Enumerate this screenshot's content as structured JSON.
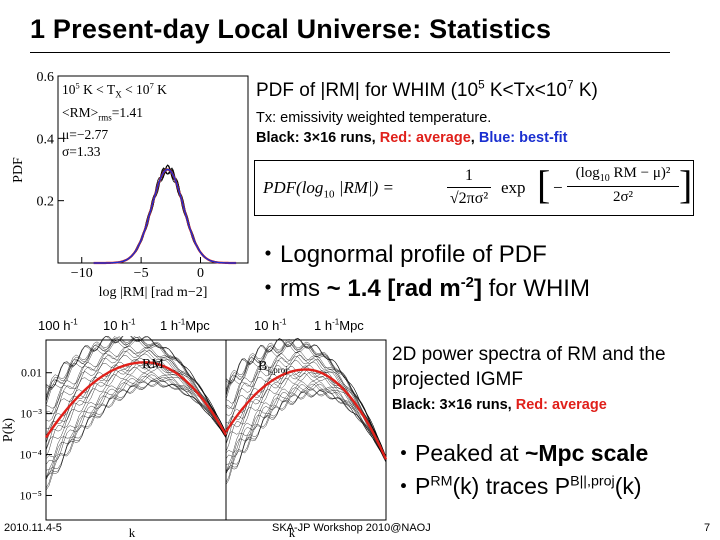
{
  "slide": {
    "title": "1 Present-day Local Universe: Statistics",
    "footer_left": "2010.11.4-5",
    "footer_center": "SKA-JP Workshop 2010@NAOJ",
    "page_number": "7"
  },
  "pdf_panel": {
    "heading_main": "PDF of |RM| for WHIM (10",
    "heading_exp1": "5",
    "heading_mid": " K<Tx<10",
    "heading_exp2": "7",
    "heading_end": " K)",
    "tx_note": "Tx: emissivity weighted temperature.",
    "legend_black": "Black: 3×16 runs, ",
    "legend_red": "Red: average",
    "legend_sep": ", ",
    "legend_blue": "Blue: best-fit",
    "bullet1": "・Lognormal profile of PDF",
    "bullet2_pre": "・rms ",
    "bullet2_bold": "~ 1.4 [rad m",
    "bullet2_exp": "-2",
    "bullet2_close": "]",
    "bullet2_post": " for WHIM",
    "formula": {
      "lhs": "PDF(log",
      "lhs_sub": "10",
      "lhs_end": " |RM|) =",
      "numerator": "1",
      "denominator": "√2πσ²",
      "exp": "exp",
      "inner_num": "(log",
      "inner_sub": "10",
      "inner_end": " RM − μ)²",
      "inner_den": "2σ²",
      "minus": "−"
    },
    "plot_text": {
      "line1": "10",
      "line1_exp": "5",
      "line1_mid": " K < T",
      "line1_sub": "X",
      "line1_mid2": " < 10",
      "line1_exp2": "7",
      "line1_end": " K",
      "line2": "<RM>",
      "line2_sub": "rms",
      "line2_end": "=1.41",
      "line3": "μ=−2.77",
      "line4": "σ=1.33"
    }
  },
  "spectra_panel": {
    "scale_labels": [
      "100 h",
      "10 h",
      "1 h",
      "10 h",
      "1 h"
    ],
    "scale_exp": "-1",
    "scale_unit": "Mpc",
    "ylabel": "P(k)",
    "xlabel": "k",
    "left_panel_label": "RM",
    "right_panel_label": "B",
    "right_panel_sub": "||,proj",
    "heading": "2D power spectra of RM and the projected IGMF",
    "legend_black": "Black: 3×16 runs, ",
    "legend_red": "Red: average",
    "bullet1_pre": "・Peaked at ",
    "bullet1_bold": "~Mpc scale",
    "bullet2_a": "・P",
    "bullet2_sup1": "RM",
    "bullet2_b": "(k) traces P",
    "bullet2_sup2": "B||,proj",
    "bullet2_c": "(k)"
  },
  "chart_data": [
    {
      "type": "line",
      "title": "",
      "xlabel": "log |RM| [rad m−2]",
      "ylabel": "PDF",
      "xlim": [
        -12,
        4
      ],
      "ylim": [
        0,
        0.6
      ],
      "x_ticks": [
        -10,
        -5,
        0
      ],
      "y_ticks": [
        0.2,
        0.4,
        0.6
      ],
      "y_tick_labels": [
        "0.2",
        "0.4",
        "0.6"
      ],
      "series": [
        {
          "color": "#000000",
          "values_by_x": "lognormal",
          "mu": -2.77,
          "sigma": 1.33,
          "runs": 48
        },
        {
          "color": "#e0201a",
          "mu": -2.77,
          "sigma": 1.33
        },
        {
          "color": "#1a2fd0",
          "mu": -2.77,
          "sigma": 1.33
        }
      ],
      "grid": false
    },
    {
      "type": "line",
      "title": "",
      "xlabel": "k",
      "ylabel": "P(k)",
      "yscale": "log",
      "y_tick_labels": [
        "0.01",
        "10⁻³",
        "10⁻⁴",
        "10⁻⁵"
      ],
      "panels": [
        {
          "label": "RM",
          "peak_logk": 0.55,
          "red_peak": 0.018
        },
        {
          "label": "B||,proj",
          "peak_logk": 0.5,
          "red_peak": 0.012
        }
      ]
    }
  ]
}
